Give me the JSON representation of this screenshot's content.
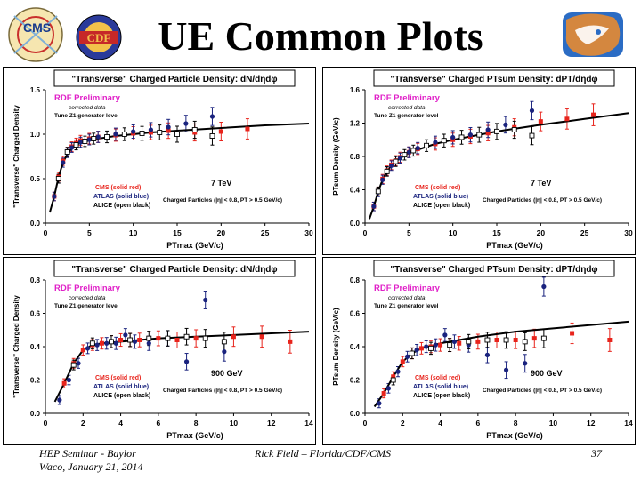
{
  "slide": {
    "title": "UE Common Plots",
    "footer_left_line1": "HEP Seminar - Baylor",
    "footer_left_line2": "Waco, January 21, 2014",
    "footer_center": "Rick Field – Florida/CDF/CMS",
    "page_number": "37"
  },
  "logos": {
    "cms_text": "CMS",
    "cdf_text": "CDF",
    "florida_icon": "florida-gator-logo"
  },
  "colors": {
    "cms": "#e8241c",
    "atlas": "#1a237e",
    "alice": "#000000",
    "rdf": "#e020c8",
    "curve": "#000000"
  },
  "chart_data": [
    {
      "type": "scatter",
      "title": "\"Transverse\" Charged Particle Density: dN/dηdφ",
      "xlabel": "PTmax  (GeV/c)",
      "ylabel": "\"Transverse\" Charged Density",
      "xlim": [
        0,
        30
      ],
      "ylim": [
        0,
        1.5
      ],
      "xticks": [
        "0",
        "5",
        "10",
        "15",
        "20",
        "25",
        "30"
      ],
      "yticks": [
        "0.0",
        "0.5",
        "1.0",
        "1.5"
      ],
      "rdf_label": "RDF Preliminary",
      "corrected_label": "corrected data",
      "tune_label": "Tune Z1 generator level",
      "energy": "7 TeV",
      "legend": [
        "CMS (solid red)",
        "ATLAS (solid blue)",
        "ALICE (open black)"
      ],
      "cuts": "Charged Particles (|η| < 0.8, PT > 0.5 GeV/c)",
      "series": [
        {
          "name": "Tune Z1",
          "kind": "line",
          "x": [
            0.5,
            1,
            1.5,
            2,
            2.5,
            3,
            3.5,
            4,
            5,
            6,
            8,
            10,
            12,
            15,
            20,
            25,
            30
          ],
          "y": [
            0.12,
            0.3,
            0.52,
            0.68,
            0.78,
            0.84,
            0.88,
            0.9,
            0.93,
            0.95,
            0.98,
            1.0,
            1.02,
            1.04,
            1.07,
            1.1,
            1.12
          ]
        },
        {
          "name": "CMS",
          "kind": "filled-square",
          "x": [
            1,
            1.5,
            2,
            2.5,
            3,
            3.5,
            4,
            5,
            6,
            8,
            10,
            12,
            14,
            17,
            20,
            23
          ],
          "y": [
            0.3,
            0.52,
            0.7,
            0.8,
            0.86,
            0.9,
            0.93,
            0.95,
            0.97,
            0.99,
            1.01,
            1.02,
            1.04,
            1.02,
            1.03,
            1.06
          ]
        },
        {
          "name": "ATLAS",
          "kind": "filled-circle",
          "x": [
            1,
            1.5,
            2,
            2.5,
            3,
            3.5,
            4,
            5,
            6,
            8,
            10,
            12,
            14,
            16,
            19
          ],
          "y": [
            0.3,
            0.5,
            0.68,
            0.79,
            0.85,
            0.88,
            0.91,
            0.94,
            0.97,
            1.0,
            1.03,
            1.05,
            1.08,
            1.12,
            1.2
          ]
        },
        {
          "name": "ALICE",
          "kind": "open-square",
          "x": [
            1.5,
            2.5,
            3.5,
            4.5,
            5.5,
            7,
            9,
            11,
            13,
            15,
            17,
            19
          ],
          "y": [
            0.5,
            0.8,
            0.88,
            0.92,
            0.95,
            0.97,
            1.0,
            1.01,
            1.02,
            1.0,
            1.05,
            0.98
          ]
        }
      ]
    },
    {
      "type": "scatter",
      "title": "\"Transverse\" Charged PTsum Density: dPT/dηdφ",
      "xlabel": "PTmax  (GeV/c)",
      "ylabel": "PTsum Density (GeV/c)",
      "xlim": [
        0,
        30
      ],
      "ylim": [
        0,
        1.6
      ],
      "xticks": [
        "0",
        "5",
        "10",
        "15",
        "20",
        "25",
        "30"
      ],
      "yticks": [
        "0.0",
        "0.4",
        "0.8",
        "1.2",
        "1.6"
      ],
      "rdf_label": "RDF Preliminary",
      "corrected_label": "corrected data",
      "tune_label": "Tune Z1 generator level",
      "energy": "7 TeV",
      "legend": [
        "CMS (solid red)",
        "ATLAS (solid blue)",
        "ALICE (open black)"
      ],
      "cuts": "Charged Particles (|η| < 0.8, PT > 0.5 GeV/c)",
      "series": [
        {
          "name": "Tune Z1",
          "kind": "line",
          "x": [
            0.5,
            1,
            1.5,
            2,
            2.5,
            3,
            3.5,
            4,
            5,
            6,
            8,
            10,
            12,
            15,
            20,
            25,
            30
          ],
          "y": [
            0.05,
            0.2,
            0.38,
            0.52,
            0.62,
            0.69,
            0.74,
            0.78,
            0.84,
            0.88,
            0.95,
            1.0,
            1.04,
            1.1,
            1.18,
            1.25,
            1.32
          ]
        },
        {
          "name": "CMS",
          "kind": "filled-square",
          "x": [
            1,
            1.5,
            2,
            2.5,
            3,
            3.5,
            4,
            5,
            6,
            8,
            10,
            12,
            14,
            17,
            20,
            23,
            26
          ],
          "y": [
            0.2,
            0.38,
            0.53,
            0.63,
            0.7,
            0.75,
            0.79,
            0.85,
            0.89,
            0.95,
            1.0,
            1.04,
            1.08,
            1.15,
            1.22,
            1.25,
            1.3
          ]
        },
        {
          "name": "ATLAS",
          "kind": "filled-circle",
          "x": [
            1,
            1.5,
            2,
            2.5,
            3,
            3.5,
            4,
            5,
            6,
            8,
            10,
            12,
            14,
            16,
            19
          ],
          "y": [
            0.2,
            0.37,
            0.52,
            0.62,
            0.69,
            0.74,
            0.78,
            0.85,
            0.9,
            0.97,
            1.03,
            1.06,
            1.12,
            1.18,
            1.35
          ]
        },
        {
          "name": "ALICE",
          "kind": "open-square",
          "x": [
            1.5,
            2.5,
            3.5,
            4.5,
            5.5,
            7,
            9,
            11,
            13,
            15,
            17,
            19
          ],
          "y": [
            0.38,
            0.62,
            0.74,
            0.82,
            0.87,
            0.93,
            0.99,
            1.03,
            1.06,
            1.1,
            1.12,
            1.05
          ]
        }
      ]
    },
    {
      "type": "scatter",
      "title": "\"Transverse\" Charged Particle Density: dN/dηdφ",
      "xlabel": "PTmax  (GeV/c)",
      "ylabel": "\"Transverse\" Charged Density",
      "xlim": [
        0,
        14
      ],
      "ylim": [
        0,
        0.8
      ],
      "xticks": [
        "0",
        "2",
        "4",
        "6",
        "8",
        "10",
        "12",
        "14"
      ],
      "yticks": [
        "0.0",
        "0.2",
        "0.4",
        "0.6",
        "0.8"
      ],
      "rdf_label": "RDF Preliminary",
      "corrected_label": "corrected data",
      "tune_label": "Tune Z1 generator level",
      "energy": "900 GeV",
      "legend": [
        "CMS (solid red)",
        "ATLAS (solid blue)",
        "ALICE (open black)"
      ],
      "cuts": "Charged Particles (|η| < 0.8, PT > 0.5 GeV/c)",
      "series": [
        {
          "name": "Tune Z1",
          "kind": "line",
          "x": [
            0.5,
            1,
            1.5,
            2,
            2.5,
            3,
            4,
            5,
            6,
            8,
            10,
            12,
            14
          ],
          "y": [
            0.07,
            0.18,
            0.3,
            0.38,
            0.41,
            0.42,
            0.43,
            0.44,
            0.45,
            0.46,
            0.47,
            0.48,
            0.49
          ]
        },
        {
          "name": "CMS",
          "kind": "filled-square",
          "x": [
            1,
            1.5,
            2,
            2.5,
            3,
            3.5,
            4,
            4.5,
            5,
            6,
            7,
            8,
            10,
            11.5,
            13
          ],
          "y": [
            0.18,
            0.3,
            0.38,
            0.41,
            0.42,
            0.43,
            0.44,
            0.44,
            0.44,
            0.45,
            0.44,
            0.45,
            0.46,
            0.46,
            0.43
          ]
        },
        {
          "name": "ATLAS",
          "kind": "filled-circle",
          "x": [
            0.75,
            1.25,
            1.75,
            2.25,
            2.75,
            3.25,
            3.75,
            4.25,
            4.75,
            5.5,
            6.5,
            7.5,
            8.5,
            9.5
          ],
          "y": [
            0.08,
            0.2,
            0.3,
            0.39,
            0.41,
            0.42,
            0.42,
            0.47,
            0.43,
            0.42,
            0.45,
            0.31,
            0.68,
            0.37
          ]
        },
        {
          "name": "ALICE",
          "kind": "open-square",
          "x": [
            1.5,
            2.5,
            3.5,
            4.5,
            5.5,
            6.5,
            7.5,
            8.5,
            9.5
          ],
          "y": [
            0.29,
            0.42,
            0.43,
            0.44,
            0.45,
            0.45,
            0.46,
            0.45,
            0.43
          ]
        }
      ]
    },
    {
      "type": "scatter",
      "title": "\"Transverse\" Charged PTsum Density: dPT/dηdφ",
      "xlabel": "PTmax  (GeV/c)",
      "ylabel": "PTsum Density (GeV/c)",
      "xlim": [
        0,
        14
      ],
      "ylim": [
        0,
        0.8
      ],
      "xticks": [
        "0",
        "2",
        "4",
        "6",
        "8",
        "10",
        "12",
        "14"
      ],
      "yticks": [
        "0.0",
        "0.2",
        "0.4",
        "0.6",
        "0.8"
      ],
      "rdf_label": "RDF Preliminary",
      "corrected_label": "corrected data",
      "tune_label": "Tune Z1 generator level",
      "energy": "900 GeV",
      "legend": [
        "CMS (solid red)",
        "ATLAS (solid blue)",
        "ALICE (open black)"
      ],
      "cuts": "Charged Particles (|η| < 0.8, PT > 0.5 GeV/c)",
      "series": [
        {
          "name": "Tune Z1",
          "kind": "line",
          "x": [
            0.5,
            1,
            1.5,
            2,
            2.5,
            3,
            4,
            5,
            6,
            8,
            10,
            12,
            14
          ],
          "y": [
            0.04,
            0.12,
            0.22,
            0.31,
            0.36,
            0.39,
            0.42,
            0.44,
            0.46,
            0.49,
            0.51,
            0.53,
            0.55
          ]
        },
        {
          "name": "CMS",
          "kind": "filled-square",
          "x": [
            1,
            1.5,
            2,
            2.5,
            3,
            3.5,
            4,
            4.5,
            5,
            6,
            7,
            8,
            9,
            11,
            13
          ],
          "y": [
            0.12,
            0.22,
            0.31,
            0.36,
            0.39,
            0.4,
            0.41,
            0.41,
            0.42,
            0.43,
            0.44,
            0.44,
            0.45,
            0.48,
            0.44
          ]
        },
        {
          "name": "ATLAS",
          "kind": "filled-circle",
          "x": [
            0.75,
            1.25,
            1.75,
            2.25,
            2.75,
            3.25,
            3.75,
            4.25,
            4.75,
            5.5,
            6.5,
            7.5,
            8.5,
            9.5
          ],
          "y": [
            0.06,
            0.15,
            0.25,
            0.34,
            0.38,
            0.4,
            0.41,
            0.47,
            0.43,
            0.41,
            0.35,
            0.26,
            0.3,
            0.76
          ]
        },
        {
          "name": "ALICE",
          "kind": "open-square",
          "x": [
            1.5,
            2.5,
            3.5,
            4.5,
            5.5,
            6.5,
            7.5,
            8.5,
            9.5
          ],
          "y": [
            0.2,
            0.36,
            0.39,
            0.41,
            0.43,
            0.44,
            0.44,
            0.43,
            0.45
          ]
        }
      ]
    }
  ]
}
